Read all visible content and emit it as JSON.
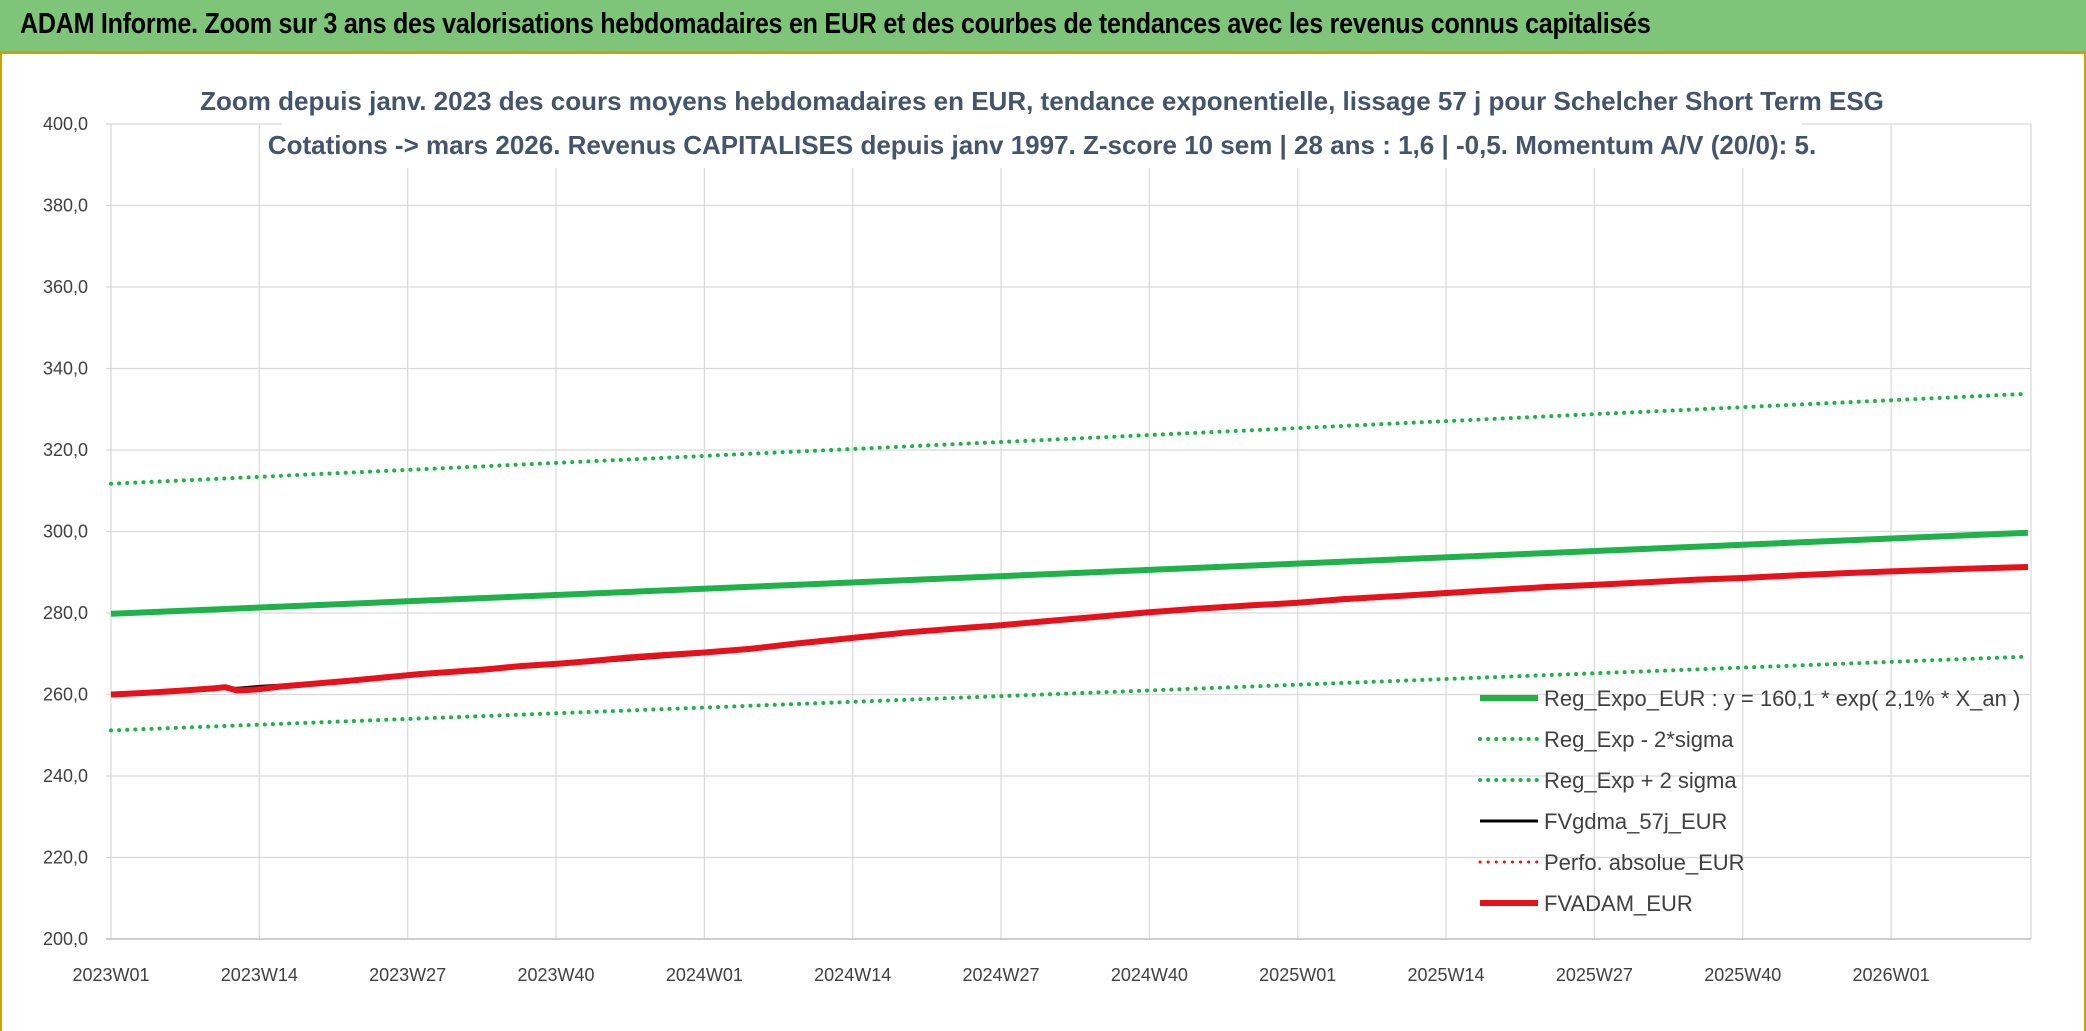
{
  "banner": {
    "title": "ADAM Informe. Zoom sur 3 ans des valorisations hebdomadaires en EUR et des courbes de tendances avec les revenus connus capitalisés"
  },
  "chart_data": {
    "type": "line",
    "title_line1": "Zoom depuis janv. 2023 des cours moyens hebdomadaires en EUR, tendance exponentielle, lissage 57 j pour Schelcher Short Term ESG",
    "title_line2": "Cotations -> mars 2026. Revenus CAPITALISES depuis janv 1997. Z-score 10 sem | 28 ans : 1,6 | -0,5. Momentum A/V (20/0): 5.",
    "ylim": [
      200,
      400
    ],
    "yticks": [
      "200,0",
      "220,0",
      "240,0",
      "260,0",
      "280,0",
      "300,0",
      "320,0",
      "340,0",
      "360,0",
      "380,0",
      "400,0"
    ],
    "xlim": [
      0,
      168
    ],
    "xticks": [
      {
        "label": "2023W01",
        "x": 0
      },
      {
        "label": "2023W14",
        "x": 13
      },
      {
        "label": "2023W27",
        "x": 26
      },
      {
        "label": "2023W40",
        "x": 39
      },
      {
        "label": "2024W01",
        "x": 52
      },
      {
        "label": "2024W14",
        "x": 65
      },
      {
        "label": "2024W27",
        "x": 78
      },
      {
        "label": "2024W40",
        "x": 91
      },
      {
        "label": "2025W01",
        "x": 104
      },
      {
        "label": "2025W14",
        "x": 117
      },
      {
        "label": "2025W27",
        "x": 130
      },
      {
        "label": "2025W40",
        "x": 143
      },
      {
        "label": "2026W01",
        "x": 156
      }
    ],
    "grid": true,
    "legend_position": "bottom-right",
    "series": [
      {
        "name": "Reg_Expo_EUR : y = 160,1 * exp( 2,1% *  X_an )",
        "color": "#1fb14a",
        "style": "solid",
        "width": 6,
        "x": [
          0,
          168
        ],
        "y": [
          279.8,
          299.7
        ]
      },
      {
        "name": "Reg_Exp - 2*sigma",
        "color": "#1fb14a",
        "style": "dotted",
        "width": 4,
        "x": [
          0,
          168
        ],
        "y": [
          251.2,
          269.3
        ]
      },
      {
        "name": "Reg_Exp + 2 sigma",
        "color": "#1fb14a",
        "style": "dotted",
        "width": 4,
        "x": [
          0,
          168
        ],
        "y": [
          311.7,
          333.8
        ]
      },
      {
        "name": "FVgdma_57j_EUR",
        "color": "#000000",
        "style": "solid",
        "width": 3,
        "x": [
          0,
          5,
          9,
          10,
          11,
          13,
          18,
          26,
          39,
          52,
          65,
          78,
          91,
          104,
          117,
          130,
          143,
          156,
          168
        ],
        "y": [
          260.0,
          260.8,
          261.6,
          261.8,
          261.5,
          262.0,
          262.8,
          264.8,
          267.3,
          270.0,
          273.8,
          277.2,
          280.0,
          282.3,
          284.7,
          286.8,
          288.5,
          290.0,
          291.2
        ]
      },
      {
        "name": "Perfo. absolue_EUR",
        "color": "#e8101a",
        "style": "dotted",
        "width": 3,
        "x": [],
        "y": []
      },
      {
        "name": "FVADAM_EUR",
        "color": "#e8101a",
        "style": "solid",
        "width": 6,
        "x": [
          0,
          3,
          6,
          9,
          10,
          11,
          12,
          13,
          15,
          18,
          21,
          24,
          27,
          30,
          33,
          36,
          39,
          42,
          45,
          48,
          52,
          56,
          60,
          65,
          70,
          75,
          78,
          82,
          87,
          91,
          95,
          100,
          104,
          108,
          113,
          117,
          121,
          126,
          130,
          135,
          139,
          143,
          148,
          152,
          156,
          160,
          164,
          168
        ],
        "y": [
          260.0,
          260.4,
          260.9,
          261.5,
          261.8,
          261.0,
          261.1,
          261.3,
          262.0,
          262.7,
          263.4,
          264.2,
          265.0,
          265.6,
          266.2,
          267.0,
          267.5,
          268.2,
          269.0,
          269.6,
          270.3,
          271.2,
          272.5,
          273.9,
          275.3,
          276.4,
          277.0,
          278.0,
          279.2,
          280.2,
          281.0,
          281.9,
          282.5,
          283.4,
          284.2,
          284.9,
          285.6,
          286.4,
          286.9,
          287.6,
          288.2,
          288.6,
          289.3,
          289.8,
          290.2,
          290.6,
          291.0,
          291.3
        ]
      }
    ]
  }
}
